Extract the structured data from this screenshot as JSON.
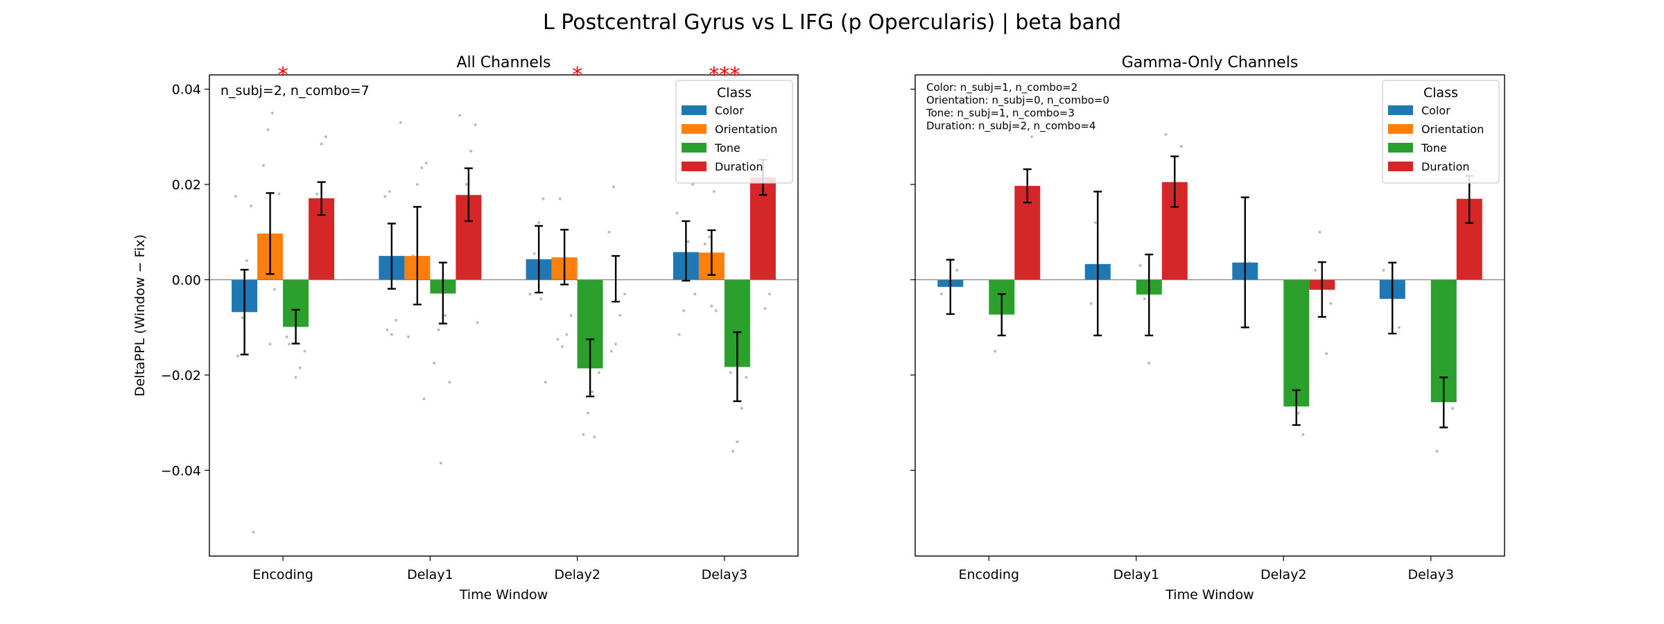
{
  "figure": {
    "title": "L Postcentral Gyrus vs L IFG (p Opercularis)  |  beta band"
  },
  "colors": {
    "Color": "#1f77b4",
    "Orientation": "#ff7f0e",
    "Tone": "#2ca02c",
    "Duration": "#d62728",
    "star": "#ff0000",
    "error": "#000000",
    "point": "#bbbbbb"
  },
  "chart_data": [
    {
      "type": "bar",
      "title": "All Channels",
      "xlabel": "Time Window",
      "ylabel": "DeltaPPL (Window − Fix)",
      "ylim": [
        -0.058,
        0.043
      ],
      "yticks": [
        0.04,
        0.02,
        0.0,
        -0.02,
        -0.04
      ],
      "ytick_labels": [
        "0.04",
        "0.02",
        "0.00",
        "−0.02",
        "−0.04"
      ],
      "categories": [
        "Encoding",
        "Delay1",
        "Delay2",
        "Delay3"
      ],
      "annotation": [
        "n_subj=2, n_combo=7"
      ],
      "significance": [
        "*",
        "",
        "*",
        "***"
      ],
      "legend_title": "Class",
      "legend_position": "top-right",
      "series": [
        {
          "name": "Color",
          "values": [
            -0.0068,
            0.005,
            0.0043,
            0.0058
          ],
          "err_low": [
            -0.0157,
            -0.0019,
            -0.0027,
            -0.0002
          ],
          "err_high": [
            0.0021,
            0.0118,
            0.0113,
            0.0123
          ],
          "points": [
            [
              0.0175,
              0.0155,
              0.004,
              -0.008,
              -0.016,
              -0.053
            ],
            [
              0.0185,
              0.0175,
              0.033,
              -0.0085,
              -0.0115,
              -0.0105
            ],
            [
              0.017,
              0.012,
              0.0055,
              -0.003,
              -0.0215,
              -0.004
            ],
            [
              0.014,
              0.02,
              0.008,
              -0.0065,
              -0.0115,
              -0.003
            ]
          ]
        },
        {
          "name": "Orientation",
          "values": [
            0.0097,
            0.005,
            0.0047,
            0.0057
          ],
          "err_low": [
            0.0012,
            -0.0052,
            -0.001,
            0.001
          ],
          "err_high": [
            0.0182,
            0.0153,
            0.0105,
            0.0104
          ],
          "points": [
            [
              0.035,
              0.0315,
              0.024,
              0.018,
              -0.002,
              -0.0135
            ],
            [
              0.0245,
              0.0235,
              0.02,
              0.005,
              -0.012,
              -0.025
            ],
            [
              0.017,
              0.003,
              -0.0075,
              -0.0115,
              -0.014,
              -0.0125
            ],
            [
              0.0185,
              0.009,
              0.0075,
              0.005,
              -0.0065,
              -0.0055
            ]
          ]
        },
        {
          "name": "Tone",
          "values": [
            -0.0099,
            -0.0029,
            -0.0186,
            -0.0183
          ],
          "err_low": [
            -0.0134,
            -0.0092,
            -0.0245,
            -0.0255
          ],
          "err_high": [
            -0.0063,
            0.0036,
            -0.0125,
            -0.011
          ],
          "points": [
            [
              -0.0135,
              -0.015,
              -0.0185,
              -0.0205,
              -0.0095,
              -0.012
            ],
            [
              -0.001,
              -0.0105,
              -0.0175,
              -0.0215,
              -0.0075,
              -0.0385
            ],
            [
              -0.014,
              -0.0235,
              -0.028,
              -0.0325,
              -0.0195,
              -0.033
            ],
            [
              -0.0195,
              -0.0205,
              -0.027,
              -0.034,
              -0.036,
              -0.012
            ]
          ]
        },
        {
          "name": "Duration",
          "values": [
            0.0171,
            0.0178,
            null,
            0.0215
          ],
          "err_low": [
            0.0136,
            0.0123,
            -0.0046,
            0.0178
          ],
          "err_high": [
            0.0205,
            0.0234,
            0.005,
            0.0252
          ],
          "points": [
            [
              0.03,
              0.0285,
              0.018,
              0.0155,
              0.0085,
              0.0045
            ],
            [
              0.0345,
              0.0325,
              0.027,
              0.02,
              0.0085,
              -0.009
            ],
            [
              0.0195,
              0.01,
              -0.003,
              -0.0075,
              -0.0135,
              -0.015
            ],
            [
              0.026,
              0.0245,
              0.0165,
              0.002,
              -0.003,
              -0.006
            ]
          ]
        }
      ]
    },
    {
      "type": "bar",
      "title": "Gamma-Only Channels",
      "xlabel": "Time Window",
      "ylim": [
        -0.058,
        0.043
      ],
      "yticks": [
        0.04,
        0.02,
        0.0,
        -0.02,
        -0.04
      ],
      "ytick_labels": [
        "",
        "",
        "",
        "",
        ""
      ],
      "categories": [
        "Encoding",
        "Delay1",
        "Delay2",
        "Delay3"
      ],
      "annotation": [
        "Color: n_subj=1, n_combo=2",
        "Orientation: n_subj=0, n_combo=0",
        "Tone: n_subj=1, n_combo=3",
        "Duration: n_subj=2, n_combo=4"
      ],
      "significance": [
        "",
        "",
        "",
        ""
      ],
      "legend_title": "Class",
      "legend_position": "top-right",
      "series": [
        {
          "name": "Color",
          "values": [
            -0.0015,
            0.0033,
            0.0036,
            -0.004
          ],
          "err_low": [
            -0.0072,
            -0.0117,
            -0.01,
            -0.0113
          ],
          "err_high": [
            0.0042,
            0.0185,
            0.0173,
            0.0036
          ],
          "points": [
            [
              -0.003,
              0.002
            ],
            [
              0.012,
              -0.005
            ],
            [
              0.0035,
              -0.01
            ],
            [
              0.002,
              -0.01
            ]
          ]
        },
        {
          "name": "Orientation",
          "values": [
            null,
            null,
            null,
            null
          ],
          "err_low": [
            null,
            null,
            null,
            null
          ],
          "err_high": [
            null,
            null,
            null,
            null
          ],
          "points": [
            [],
            [],
            [],
            []
          ]
        },
        {
          "name": "Tone",
          "values": [
            -0.0073,
            -0.0031,
            -0.0266,
            -0.0257
          ],
          "err_low": [
            -0.0117,
            -0.0117,
            -0.0305,
            -0.031
          ],
          "err_high": [
            -0.003,
            0.0053,
            -0.0232,
            -0.0205
          ],
          "points": [
            [
              -0.015,
              -0.007,
              -0.003
            ],
            [
              -0.0175,
              -0.004,
              0.003
            ],
            [
              -0.0325,
              -0.028,
              -0.0235
            ],
            [
              -0.036,
              -0.027,
              -0.023
            ]
          ]
        },
        {
          "name": "Duration",
          "values": [
            0.0197,
            0.0205,
            -0.0021,
            0.017
          ],
          "err_low": [
            0.0162,
            0.0153,
            -0.0078,
            0.0119
          ],
          "err_high": [
            0.0232,
            0.0259,
            0.0037,
            0.0218
          ],
          "points": [
            [
              0.03,
              0.023,
              0.016,
              0.014
            ],
            [
              0.0305,
              0.028,
              0.012,
              0.008
            ],
            [
              0.01,
              0.002,
              -0.005,
              -0.0155
            ],
            [
              0.023,
              0.02,
              0.002,
              0.001
            ]
          ]
        }
      ]
    }
  ]
}
